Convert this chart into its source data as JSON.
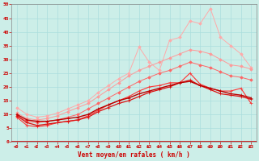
{
  "xlabel": "Vent moyen/en rafales ( km/h )",
  "bg_color": "#cceee8",
  "x": [
    0,
    1,
    2,
    3,
    4,
    5,
    6,
    7,
    8,
    9,
    10,
    11,
    12,
    13,
    14,
    15,
    16,
    17,
    18,
    19,
    20,
    21,
    22,
    23
  ],
  "ylim": [
    0,
    50
  ],
  "xlim": [
    -0.5,
    23.5
  ],
  "yticks": [
    0,
    5,
    10,
    15,
    20,
    25,
    30,
    35,
    40,
    45,
    50
  ],
  "lines": [
    {
      "color": "#ffaaaa",
      "marker": "D",
      "markersize": 1.8,
      "linewidth": 0.7,
      "y": [
        12.5,
        10.0,
        9.0,
        9.5,
        10.5,
        12.0,
        13.5,
        15.0,
        18.0,
        20.5,
        23.0,
        25.0,
        34.5,
        29.0,
        26.0,
        37.0,
        38.0,
        44.0,
        43.0,
        48.5,
        38.0,
        35.0,
        32.0,
        27.0
      ]
    },
    {
      "color": "#ff9999",
      "marker": "D",
      "markersize": 1.8,
      "linewidth": 0.7,
      "y": [
        10.5,
        8.5,
        8.0,
        8.5,
        9.5,
        11.0,
        12.5,
        14.0,
        16.5,
        19.0,
        21.5,
        24.0,
        26.0,
        27.5,
        29.0,
        30.5,
        32.0,
        33.5,
        33.0,
        32.0,
        30.0,
        28.0,
        27.5,
        26.5
      ]
    },
    {
      "color": "#ff6666",
      "marker": "D",
      "markersize": 1.8,
      "linewidth": 0.7,
      "y": [
        9.5,
        7.5,
        7.0,
        7.5,
        8.0,
        9.0,
        10.0,
        12.0,
        14.0,
        16.0,
        18.0,
        20.0,
        22.0,
        23.5,
        25.0,
        26.0,
        27.5,
        29.0,
        28.0,
        27.0,
        25.5,
        24.0,
        23.5,
        22.5
      ]
    },
    {
      "color": "#ff3333",
      "marker": "+",
      "markersize": 3,
      "linewidth": 0.8,
      "y": [
        9.0,
        6.0,
        5.5,
        6.0,
        7.0,
        7.5,
        8.0,
        9.5,
        11.5,
        13.5,
        15.0,
        16.5,
        18.5,
        20.0,
        20.5,
        21.5,
        21.5,
        25.0,
        21.0,
        19.5,
        18.5,
        18.5,
        19.5,
        14.0
      ]
    },
    {
      "color": "#dd1111",
      "marker": "+",
      "markersize": 3,
      "linewidth": 0.9,
      "y": [
        9.5,
        7.0,
        6.0,
        6.5,
        7.0,
        7.5,
        8.0,
        9.0,
        11.0,
        12.5,
        14.0,
        15.0,
        16.5,
        18.0,
        19.0,
        20.0,
        21.5,
        22.5,
        20.5,
        19.0,
        17.5,
        17.0,
        16.5,
        15.5
      ]
    },
    {
      "color": "#bb0000",
      "marker": "+",
      "markersize": 3,
      "linewidth": 1.0,
      "y": [
        10.0,
        8.0,
        7.5,
        7.5,
        8.0,
        8.5,
        9.0,
        10.0,
        12.0,
        13.5,
        15.0,
        16.0,
        17.5,
        18.5,
        19.5,
        20.5,
        21.5,
        22.0,
        20.5,
        19.5,
        18.5,
        17.5,
        17.0,
        16.0
      ]
    }
  ],
  "arrow_color": "#cc0000",
  "grid_color": "#aadddd",
  "spine_color": "#888888"
}
